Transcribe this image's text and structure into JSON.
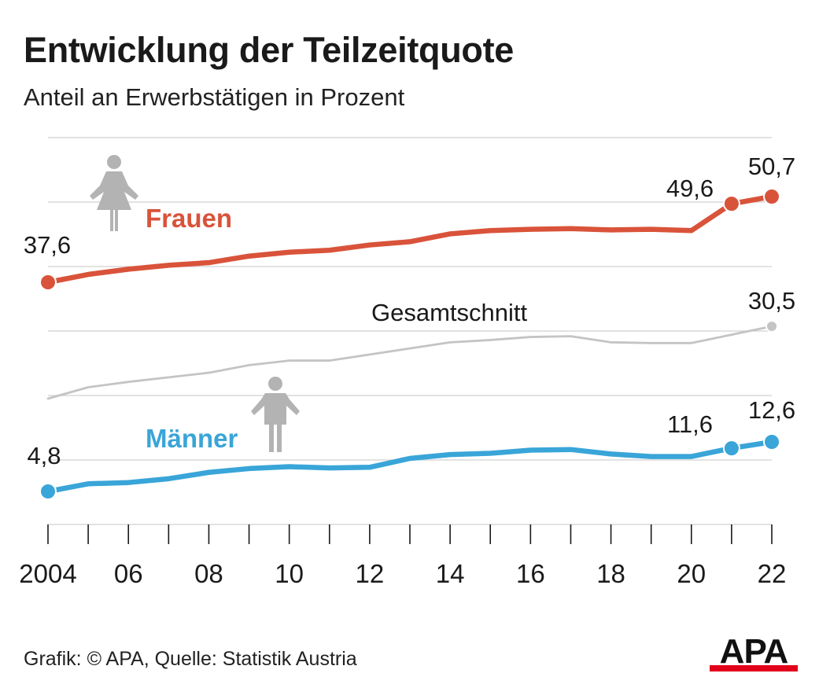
{
  "header": {
    "title": "Entwicklung der Teilzeitquote",
    "subtitle": "Anteil an Erwerbstätigen in Prozent"
  },
  "footer": {
    "source": "Grafik: © APA, Quelle: Statistik Austria",
    "logo_text": "APA"
  },
  "colors": {
    "women": "#d9533a",
    "men": "#39a5d8",
    "total": "#c4c4c4",
    "grid": "#d0d0d0",
    "icon": "#b3b3b3",
    "logo_red": "#e2001a"
  },
  "chart_data": {
    "type": "line",
    "title": "Entwicklung der Teilzeitquote",
    "subtitle": "Anteil an Erwerbstätigen in Prozent",
    "x": [
      2004,
      2005,
      2006,
      2007,
      2008,
      2009,
      2010,
      2011,
      2012,
      2013,
      2014,
      2015,
      2016,
      2017,
      2018,
      2019,
      2020,
      2021,
      2022
    ],
    "x_tick_labels": [
      "2004",
      "06",
      "08",
      "10",
      "12",
      "14",
      "16",
      "18",
      "20",
      "22"
    ],
    "grid": true,
    "series": [
      {
        "name": "Frauen",
        "key": "women",
        "values": [
          37.6,
          38.8,
          39.6,
          40.2,
          40.6,
          41.6,
          42.2,
          42.5,
          43.3,
          43.8,
          45.0,
          45.5,
          45.7,
          45.8,
          45.6,
          45.7,
          45.5,
          49.6,
          50.7
        ],
        "labels": {
          "0": "37,6",
          "17": "49,6",
          "18": "50,7"
        }
      },
      {
        "name": "Gesamtschnitt",
        "key": "total",
        "values": [
          21.0,
          22.5,
          23.2,
          23.8,
          24.4,
          25.4,
          26.0,
          26.0,
          26.8,
          27.6,
          28.4,
          28.7,
          29.1,
          29.2,
          28.4,
          28.3,
          28.3,
          null,
          30.5
        ],
        "labels": {
          "18": "30,5"
        }
      },
      {
        "name": "Männer",
        "key": "men",
        "values": [
          4.8,
          6.0,
          6.2,
          6.8,
          7.8,
          8.4,
          8.7,
          8.5,
          8.6,
          10.0,
          10.6,
          10.8,
          11.3,
          11.4,
          10.7,
          10.3,
          10.3,
          11.6,
          12.6
        ],
        "labels": {
          "0": "4,8",
          "17": "11,6",
          "18": "12,6"
        }
      }
    ]
  }
}
